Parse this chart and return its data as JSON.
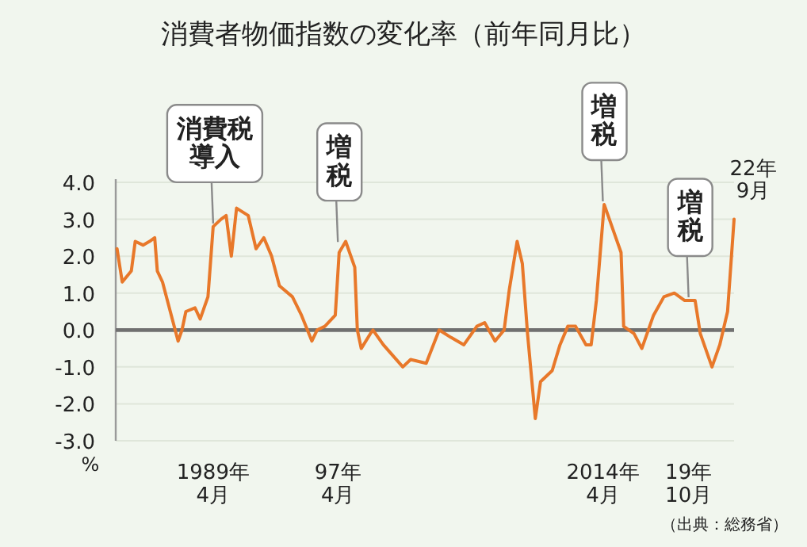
{
  "chart_data": {
    "type": "line",
    "title": "消費者物価指数の変化率（前年同月比）",
    "ylabel": "%",
    "x": [
      "1983-02",
      "1983-06",
      "1984-01",
      "1984-04",
      "1984-10",
      "1985-03",
      "1985-07",
      "1985-09",
      "1986-01",
      "1986-07",
      "1987-01",
      "1987-04",
      "1987-07",
      "1988-02",
      "1988-06",
      "1988-12",
      "1989-04",
      "1989-10",
      "1990-02",
      "1990-06",
      "1990-10",
      "1991-07",
      "1992-01",
      "1992-07",
      "1993-01",
      "1993-07",
      "1994-05",
      "1994-12",
      "1995-08",
      "1995-12",
      "1996-06",
      "1997-02",
      "1997-05",
      "1997-10",
      "1998-05",
      "1998-07",
      "1998-10",
      "1999-05",
      "1999-07",
      "2000-03",
      "2001-06",
      "2001-12",
      "2002-12",
      "2003-10",
      "2004-07",
      "2005-05",
      "2006-03",
      "2006-09",
      "2007-05",
      "2007-12",
      "2008-04",
      "2008-10",
      "2009-02",
      "2009-06",
      "2009-12",
      "2010-04",
      "2011-01",
      "2011-07",
      "2012-01",
      "2012-07",
      "2013-03",
      "2013-07",
      "2013-11",
      "2014-05",
      "2015-02",
      "2015-06",
      "2015-08",
      "2016-04",
      "2016-10",
      "2017-07",
      "2018-03",
      "2018-11",
      "2019-07",
      "2020-03",
      "2020-07",
      "2021-04",
      "2021-10",
      "2022-04",
      "2022-07",
      "2022-09"
    ],
    "series": [
      {
        "color": "#e8782a",
        "values": [
          2.2,
          1.3,
          1.6,
          2.4,
          2.3,
          2.4,
          2.5,
          1.6,
          1.3,
          0.5,
          -0.3,
          0.0,
          0.5,
          0.6,
          0.3,
          0.9,
          2.8,
          3.0,
          3.1,
          2.0,
          3.3,
          3.1,
          2.2,
          2.5,
          2.0,
          1.2,
          0.9,
          0.4,
          -0.3,
          0.0,
          0.1,
          0.4,
          2.1,
          2.4,
          1.7,
          0.0,
          -0.5,
          -0.1,
          0.0,
          -0.4,
          -1.0,
          -0.8,
          -0.9,
          0.0,
          -0.2,
          -0.4,
          0.1,
          0.2,
          -0.3,
          0.0,
          1.1,
          2.4,
          1.8,
          -0.1,
          -2.4,
          -1.4,
          -1.1,
          -0.4,
          0.1,
          0.1,
          -0.4,
          -0.4,
          0.8,
          3.4,
          2.5,
          2.1,
          0.1,
          -0.1,
          -0.5,
          0.4,
          0.9,
          1.0,
          0.8,
          0.8,
          -0.1,
          -1.0,
          -0.4,
          0.5,
          2.0,
          3.0
        ]
      }
    ],
    "xlim": [
      "1983-01",
      "2022-09"
    ],
    "xticks": [
      {
        "value": "1989-04",
        "label": "1989年4月"
      },
      {
        "value": "1997-04",
        "label": "97年4月"
      },
      {
        "value": "2014-04",
        "label": "2014年4月"
      },
      {
        "value": "2019-10",
        "label": "19年10月"
      }
    ],
    "ylim": [
      -3,
      4
    ],
    "yticks": [
      {
        "value": -3,
        "label": "-3.0"
      },
      {
        "value": -2,
        "label": "-2.0"
      },
      {
        "value": -1,
        "label": "-1.0"
      },
      {
        "value": 0,
        "label": "0.0"
      },
      {
        "value": 1,
        "label": "1.0"
      },
      {
        "value": 2,
        "label": "2.0"
      },
      {
        "value": 3,
        "label": "3.0"
      },
      {
        "value": 4,
        "label": "4.0"
      }
    ],
    "ref_lines": [
      {
        "axis": "y",
        "value": 0,
        "color": "#707070"
      }
    ],
    "grid": "y",
    "marker": "none",
    "line_style": "solid",
    "annotations": [
      {
        "text": "消費税導入",
        "x": "1989-04",
        "y": 2.8
      },
      {
        "text": "増税",
        "x": "1997-04",
        "y": 2.3
      },
      {
        "text": "増税",
        "x": "2014-04",
        "y": 3.4
      },
      {
        "text": "増税",
        "x": "2019-10",
        "y": 0.8
      },
      {
        "text": "22年9月",
        "x": "2022-09",
        "y": 3.0
      },
      "（出典：総務省）"
    ]
  }
}
